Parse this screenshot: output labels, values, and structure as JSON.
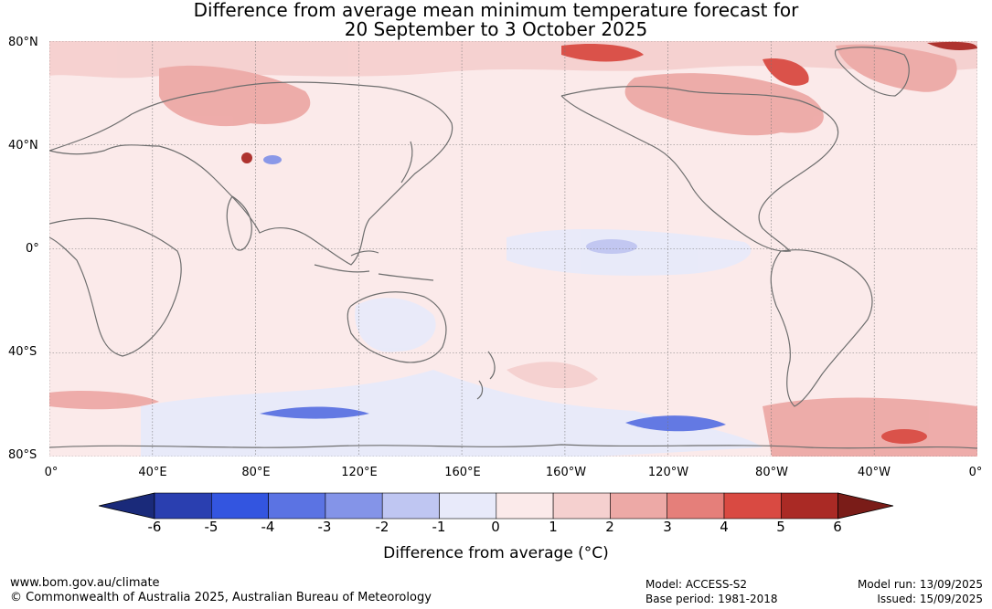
{
  "title": {
    "line1": "Difference from average mean minimum temperature forecast for",
    "line2": "20 September to 3 October 2025"
  },
  "map": {
    "lat_labels": [
      "80°N",
      "40°N",
      "0°",
      "40°S",
      "80°S"
    ],
    "lon_labels": [
      "0°",
      "40°E",
      "80°E",
      "120°E",
      "160°E",
      "160°W",
      "120°W",
      "80°W",
      "40°W",
      "0°"
    ],
    "ocean_base_color": "#fbeaea",
    "coastline_color": "#6e6e6e",
    "grid": true
  },
  "colorbar": {
    "title": "Difference from average (°C)",
    "tick_labels": [
      "-6",
      "-5",
      "-4",
      "-3",
      "-2",
      "-1",
      "0",
      "1",
      "2",
      "3",
      "4",
      "5",
      "6"
    ],
    "colors": [
      "#1a2a7a",
      "#2a3fb0",
      "#3355e0",
      "#5b73e3",
      "#8494e8",
      "#bfc6f2",
      "#e8eafa",
      "#fbeaea",
      "#f5d0cf",
      "#eda9a6",
      "#e57f7a",
      "#d94a42",
      "#aa2a25",
      "#7a1c18"
    ]
  },
  "footer": {
    "website": "www.bom.gov.au/climate",
    "copyright": "© Commonwealth of Australia 2025, Australian Bureau of Meteorology",
    "model": "Model: ACCESS-S2",
    "base_period": "Base period: 1981-2018",
    "model_run": "Model run: 13/09/2025",
    "issued": "Issued: 15/09/2025"
  }
}
